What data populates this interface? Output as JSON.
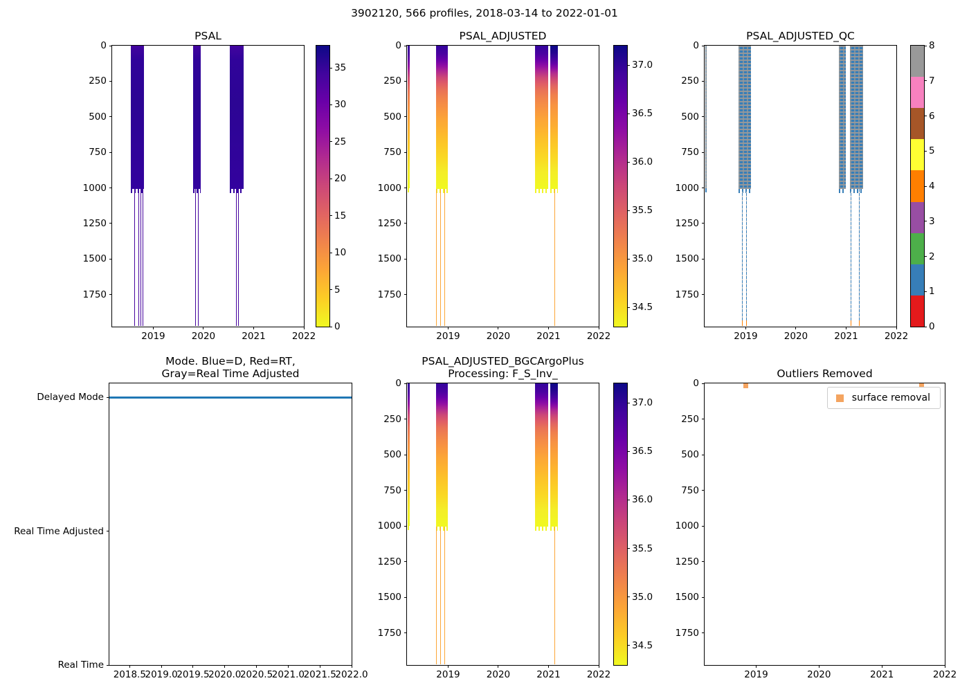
{
  "figure": {
    "title": "3902120, 566 profiles, 2018-03-14 to 2022-01-01",
    "background": "#ffffff"
  },
  "palette": {
    "spine": "#000000",
    "text": "#000000",
    "mode_line_blue": "#1f77b4",
    "outlier_orange": "#f4a460",
    "deep_line_orange": "#fca636",
    "deep_line_indigo": "#45039e",
    "qc_blue": "#377eb8",
    "qc_gray": "#999999",
    "qc_tip_orange": "#ff7f00"
  },
  "chart_data": [
    {
      "id": "psal",
      "type": "heatmap",
      "title": "PSAL",
      "x": {
        "min": 2018.18,
        "max": 2022.0,
        "ticks": [
          2019,
          2020,
          2021,
          2022
        ],
        "labels": [
          "2019",
          "2020",
          "2021",
          "2022"
        ]
      },
      "y": {
        "min": 0,
        "max": 1975,
        "invert": true,
        "ticks": [
          0,
          250,
          500,
          750,
          1000,
          1250,
          1500,
          1750
        ],
        "labels": [
          "0",
          "250",
          "500",
          "750",
          "1000",
          "1250",
          "1500",
          "1750"
        ]
      },
      "bands": [
        {
          "x0": 2018.55,
          "x1": 2018.82,
          "d0": 0,
          "d1": 1005,
          "style": "psal"
        },
        {
          "x0": 2019.8,
          "x1": 2019.95,
          "d0": 0,
          "d1": 1005,
          "style": "psal"
        },
        {
          "x0": 2020.52,
          "x1": 2020.8,
          "d0": 0,
          "d1": 1005,
          "style": "psal"
        }
      ],
      "lines": [
        {
          "x": 2018.63,
          "d0": 1005,
          "d1": 1970,
          "style": "indigo"
        },
        {
          "x": 2018.71,
          "d0": 1005,
          "d1": 1970,
          "style": "indigo"
        },
        {
          "x": 2018.755,
          "d0": 1005,
          "d1": 1970,
          "style": "indigo"
        },
        {
          "x": 2018.8,
          "d0": 1005,
          "d1": 1970,
          "style": "indigo"
        },
        {
          "x": 2019.84,
          "d0": 1005,
          "d1": 1970,
          "style": "indigo"
        },
        {
          "x": 2019.9,
          "d0": 1005,
          "d1": 1970,
          "style": "indigo"
        },
        {
          "x": 2020.66,
          "d0": 1005,
          "d1": 1970,
          "style": "indigo"
        },
        {
          "x": 2020.69,
          "d0": 1005,
          "d1": 1970,
          "style": "indigo"
        }
      ],
      "colorbar": {
        "target": "cb1",
        "kind": "plasma",
        "vmin": 0,
        "vmax": 38,
        "ticks": [
          35,
          30,
          25,
          20,
          15,
          10,
          5,
          0
        ],
        "labels": [
          "35",
          "30",
          "25",
          "20",
          "15",
          "10",
          "5",
          "0"
        ]
      }
    },
    {
      "id": "psal_adjusted",
      "type": "heatmap",
      "title": "PSAL_ADJUSTED",
      "x": {
        "min": 2018.18,
        "max": 2022.0,
        "ticks": [
          2019,
          2020,
          2021,
          2022
        ],
        "labels": [
          "2019",
          "2020",
          "2021",
          "2022"
        ]
      },
      "y": {
        "min": 0,
        "max": 1975,
        "invert": true,
        "ticks": [
          0,
          250,
          500,
          750,
          1000,
          1250,
          1500,
          1750
        ],
        "labels": [
          "0",
          "250",
          "500",
          "750",
          "1000",
          "1250",
          "1500",
          "1750"
        ]
      },
      "bands": [
        {
          "x0": 2018.19,
          "x1": 2018.23,
          "d0": 0,
          "d1": 1000,
          "style": "grad"
        },
        {
          "x0": 2018.755,
          "x1": 2019.0,
          "d0": 0,
          "d1": 1005,
          "style": "grad"
        },
        {
          "x0": 2020.73,
          "x1": 2020.99,
          "d0": 0,
          "d1": 1005,
          "style": "grad"
        },
        {
          "x0": 2021.03,
          "x1": 2021.19,
          "d0": 0,
          "d1": 1005,
          "style": "grad-dark"
        }
      ],
      "lines": [
        {
          "x": 2018.77,
          "d0": 1005,
          "d1": 1970,
          "style": "orange"
        },
        {
          "x": 2018.85,
          "d0": 1005,
          "d1": 1970,
          "style": "orange"
        },
        {
          "x": 2018.93,
          "d0": 1005,
          "d1": 1970,
          "style": "orange"
        },
        {
          "x": 2021.12,
          "d0": 1005,
          "d1": 1970,
          "style": "orange"
        }
      ],
      "colorbar": {
        "target": "cb2",
        "kind": "plasma",
        "vmin": 34.3,
        "vmax": 37.2,
        "ticks": [
          37.0,
          36.5,
          36.0,
          35.5,
          35.0,
          34.5
        ],
        "labels": [
          "37.0",
          "36.5",
          "36.0",
          "35.5",
          "35.0",
          "34.5"
        ]
      }
    },
    {
      "id": "psal_adjusted_qc",
      "type": "heatmap",
      "title": "PSAL_ADJUSTED_QC",
      "x": {
        "min": 2018.18,
        "max": 2022.0,
        "ticks": [
          2019,
          2020,
          2021,
          2022
        ],
        "labels": [
          "2019",
          "2020",
          "2021",
          "2022"
        ]
      },
      "y": {
        "min": 0,
        "max": 1975,
        "invert": true,
        "ticks": [
          0,
          250,
          500,
          750,
          1000,
          1250,
          1500,
          1750
        ],
        "labels": [
          "0",
          "250",
          "500",
          "750",
          "1000",
          "1250",
          "1500",
          "1750"
        ]
      },
      "bands": [
        {
          "x0": 2018.19,
          "x1": 2018.22,
          "d0": 0,
          "d1": 1000,
          "style": "qc"
        },
        {
          "x0": 2018.86,
          "x1": 2019.11,
          "d0": 0,
          "d1": 1005,
          "style": "qc"
        },
        {
          "x0": 2020.85,
          "x1": 2021.0,
          "d0": 0,
          "d1": 1005,
          "style": "qc"
        },
        {
          "x0": 2021.07,
          "x1": 2021.34,
          "d0": 0,
          "d1": 1005,
          "style": "qc"
        }
      ],
      "lines": [
        {
          "x": 2018.93,
          "d0": 1005,
          "d1": 1972,
          "style": "qcline",
          "tip": true
        },
        {
          "x": 2019.01,
          "d0": 1005,
          "d1": 1972,
          "style": "qcline",
          "tip": true
        },
        {
          "x": 2021.09,
          "d0": 1005,
          "d1": 1972,
          "style": "qcline",
          "tip": true
        },
        {
          "x": 2021.26,
          "d0": 1005,
          "d1": 1972,
          "style": "qcline",
          "tip": true
        }
      ],
      "colorbar": {
        "target": "cb3",
        "kind": "discrete",
        "vmin": 0,
        "vmax": 8,
        "ticks": [
          0,
          1,
          2,
          3,
          4,
          5,
          6,
          7,
          8
        ],
        "labels": [
          "0",
          "1",
          "2",
          "3",
          "4",
          "5",
          "6",
          "7",
          "8"
        ],
        "colors_bottom_to_top": [
          "#e41a1c",
          "#377eb8",
          "#4daf4a",
          "#984ea3",
          "#ff7f00",
          "#ffff33",
          "#a65628",
          "#f781bf",
          "#999999"
        ]
      }
    },
    {
      "id": "mode",
      "type": "line",
      "title": "Mode. Blue=D, Red=RT,\nGray=Real Time Adjusted",
      "x": {
        "min": 2018.18,
        "max": 2022.0,
        "ticks": [
          2018.5,
          2019.0,
          2019.5,
          2020.0,
          2020.5,
          2021.0,
          2021.5,
          2022.0
        ],
        "labels": [
          "2018.5",
          "2019.0",
          "2019.5",
          "2020.0",
          "2020.5",
          "2021.0",
          "2021.5",
          "2022.0"
        ]
      },
      "y": {
        "min": 0,
        "max": 2.105,
        "invert": false,
        "ticks": [
          2,
          1,
          0
        ],
        "labels": [
          "Delayed Mode",
          "Real Time Adjusted",
          "Real Time"
        ]
      },
      "hline": {
        "value": 2,
        "color": "#1f77b4"
      }
    },
    {
      "id": "bgc",
      "type": "heatmap",
      "title": "PSAL_ADJUSTED_BGCArgoPlus\nProcessing: F_S_Inv_",
      "x": {
        "min": 2018.18,
        "max": 2022.0,
        "ticks": [
          2019,
          2020,
          2021,
          2022
        ],
        "labels": [
          "2019",
          "2020",
          "2021",
          "2022"
        ]
      },
      "y": {
        "min": 0,
        "max": 1975,
        "invert": true,
        "ticks": [
          0,
          250,
          500,
          750,
          1000,
          1250,
          1500,
          1750
        ],
        "labels": [
          "0",
          "250",
          "500",
          "750",
          "1000",
          "1250",
          "1500",
          "1750"
        ]
      },
      "bands": [
        {
          "x0": 2018.19,
          "x1": 2018.23,
          "d0": 0,
          "d1": 1000,
          "style": "grad"
        },
        {
          "x0": 2018.755,
          "x1": 2019.0,
          "d0": 0,
          "d1": 1005,
          "style": "grad"
        },
        {
          "x0": 2020.73,
          "x1": 2020.99,
          "d0": 0,
          "d1": 1005,
          "style": "grad"
        },
        {
          "x0": 2021.03,
          "x1": 2021.19,
          "d0": 0,
          "d1": 1005,
          "style": "grad-dark"
        }
      ],
      "lines": [
        {
          "x": 2018.77,
          "d0": 1005,
          "d1": 1970,
          "style": "orange"
        },
        {
          "x": 2018.85,
          "d0": 1005,
          "d1": 1970,
          "style": "orange"
        },
        {
          "x": 2018.93,
          "d0": 1005,
          "d1": 1970,
          "style": "orange"
        },
        {
          "x": 2021.12,
          "d0": 1005,
          "d1": 1970,
          "style": "orange"
        }
      ],
      "colorbar": {
        "target": "cb5",
        "kind": "plasma",
        "vmin": 34.3,
        "vmax": 37.2,
        "ticks": [
          37.0,
          36.5,
          36.0,
          35.5,
          35.0,
          34.5
        ],
        "labels": [
          "37.0",
          "36.5",
          "36.0",
          "35.5",
          "35.0",
          "34.5"
        ]
      }
    },
    {
      "id": "outliers",
      "type": "scatter",
      "title": "Outliers Removed",
      "x": {
        "min": 2018.18,
        "max": 2022.0,
        "ticks": [
          2019,
          2020,
          2021,
          2022
        ],
        "labels": [
          "2019",
          "2020",
          "2021",
          "2022"
        ]
      },
      "y": {
        "min": 0,
        "max": 1975,
        "invert": true,
        "ticks": [
          0,
          250,
          500,
          750,
          1000,
          1250,
          1500,
          1750
        ],
        "labels": [
          "0",
          "250",
          "500",
          "750",
          "1000",
          "1250",
          "1500",
          "1750"
        ]
      },
      "legend": {
        "label": "surface removal",
        "marker_color": "#f4a460"
      },
      "markers": [
        {
          "x": 2018.84,
          "d": 8
        },
        {
          "x": 2021.63,
          "d": 8
        }
      ]
    }
  ]
}
